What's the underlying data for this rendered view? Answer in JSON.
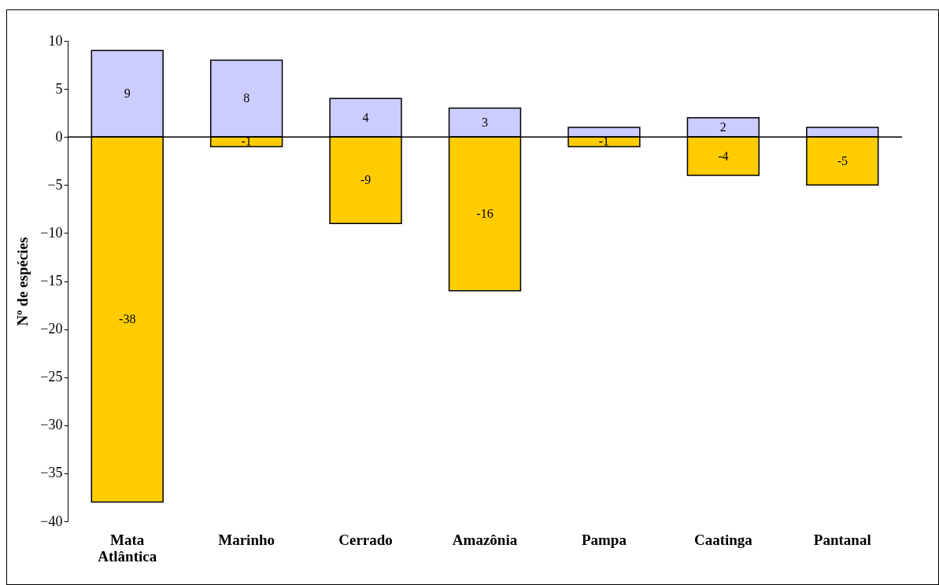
{
  "chart_data": {
    "type": "bar",
    "stacked": true,
    "ylabel": "Nº de espécies",
    "categories": [
      "Mata Atlântica",
      "Marinho",
      "Cerrado",
      "Amazônia",
      "Pampa",
      "Caatinga",
      "Pantanal"
    ],
    "series": [
      {
        "color": "#ccccff",
        "values": [
          9,
          8,
          4,
          3,
          1,
          2,
          1
        ],
        "value_labels": [
          "9",
          "8",
          "4",
          "3",
          null,
          "2",
          null
        ]
      },
      {
        "color": "#ffcc00",
        "values": [
          -38,
          -1,
          -9,
          -16,
          -1,
          -4,
          -5
        ],
        "value_labels": [
          "-38",
          "-1",
          "-9",
          "-16",
          "-1",
          "-4",
          "-5"
        ]
      }
    ],
    "ylim": [
      -40,
      10
    ],
    "yticks": [
      -40,
      -35,
      -30,
      -25,
      -20,
      -15,
      -10,
      -5,
      0,
      5,
      10
    ],
    "grid": false,
    "ref_lines": [
      {
        "axis": "y",
        "value": 0
      }
    ]
  }
}
